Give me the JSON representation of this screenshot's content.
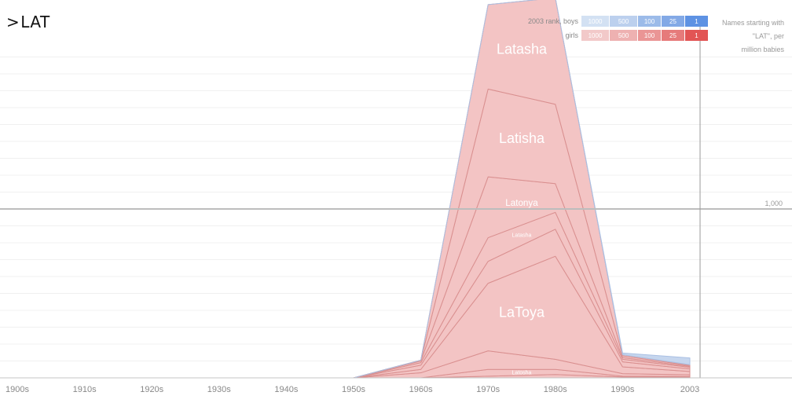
{
  "search": {
    "prompt": ">",
    "query": "LAT"
  },
  "legend": {
    "boys_label": "2003 rank, boys",
    "girls_label": "girls",
    "ranks": [
      "1000",
      "500",
      "100",
      "25",
      "1"
    ],
    "boys_colors": [
      "#d3e1f3",
      "#bcd0ee",
      "#9cbbe9",
      "#83a9e6",
      "#5e92e3"
    ],
    "girls_colors": [
      "#f2c9c9",
      "#eeb1b1",
      "#ea9595",
      "#e67b7b",
      "#e25555"
    ]
  },
  "side_caption": [
    "Names starting with",
    "\"LAT\", per",
    "million babies"
  ],
  "colors": {
    "girls_fill": "#f3c4c4",
    "girls_stroke": "#d98f8f",
    "boys_fill": "#c6d6ee",
    "grid": "#f0f0f0",
    "axis": "#c4c4c4"
  },
  "chart_data": {
    "type": "area",
    "stacked": true,
    "x": [
      "1900s",
      "1910s",
      "1920s",
      "1930s",
      "1940s",
      "1950s",
      "1960s",
      "1970s",
      "1980s",
      "1990s",
      "2003"
    ],
    "xlabel": "",
    "ylabel": "",
    "reference_line": {
      "value": 1000,
      "label": "1,000"
    },
    "ylim": [
      0,
      2320
    ],
    "grid": true,
    "series": [
      {
        "name": "",
        "gender": "girls",
        "labeled": false,
        "values": [
          0,
          0,
          0,
          0,
          0,
          0,
          0,
          10,
          20,
          5,
          5
        ]
      },
      {
        "name": "Latosha",
        "gender": "girls",
        "labeled": true,
        "values": [
          0,
          0,
          0,
          0,
          0,
          0,
          0,
          40,
          30,
          5,
          3
        ]
      },
      {
        "name": "",
        "gender": "girls",
        "labeled": false,
        "values": [
          0,
          0,
          0,
          0,
          0,
          0,
          30,
          110,
          60,
          15,
          10
        ]
      },
      {
        "name": "LaToya",
        "gender": "girls",
        "labeled": true,
        "values": [
          0,
          0,
          0,
          0,
          0,
          0,
          20,
          400,
          610,
          40,
          20
        ]
      },
      {
        "name": "",
        "gender": "girls",
        "labeled": false,
        "values": [
          0,
          0,
          0,
          0,
          0,
          0,
          25,
          130,
          160,
          30,
          15
        ]
      },
      {
        "name": "Latasha",
        "gender": "girls",
        "labeled": true,
        "values": [
          0,
          0,
          0,
          0,
          0,
          0,
          15,
          140,
          100,
          15,
          10
        ]
      },
      {
        "name": "Latonya",
        "gender": "girls",
        "labeled": true,
        "values": [
          0,
          0,
          0,
          0,
          0,
          0,
          10,
          360,
          170,
          10,
          5
        ]
      },
      {
        "name": "Latisha",
        "gender": "girls",
        "labeled": true,
        "values": [
          0,
          0,
          0,
          0,
          0,
          0,
          5,
          520,
          470,
          10,
          5
        ]
      },
      {
        "name": "Latasha",
        "gender": "girls",
        "labeled": true,
        "values": [
          0,
          0,
          0,
          0,
          0,
          0,
          0,
          500,
          630,
          7,
          5
        ]
      },
      {
        "name": "",
        "gender": "boys",
        "labeled": false,
        "values": [
          0,
          0,
          0,
          0,
          0,
          0,
          0,
          0,
          0,
          10,
          40
        ]
      }
    ]
  }
}
